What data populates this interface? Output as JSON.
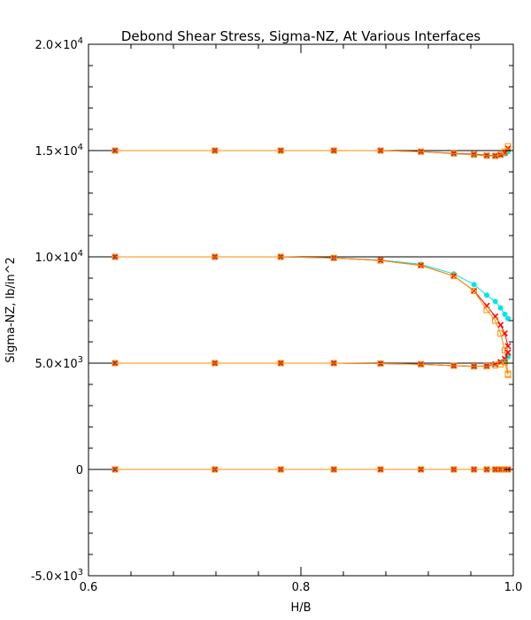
{
  "chart_data": {
    "type": "line",
    "title": "Debond Shear Stress, Sigma-NZ, At Various Interfaces",
    "xlabel": "H/B",
    "ylabel": "Sigma-NZ,   lb/in^2",
    "xlim": [
      0.6,
      1.0
    ],
    "ylim": [
      -5000,
      20000
    ],
    "x_ticks": [
      {
        "value": 0.6,
        "label": "0.6"
      },
      {
        "value": 0.8,
        "label": "0.8"
      },
      {
        "value": 1.0,
        "label": "1.0"
      }
    ],
    "y_ticks": [
      {
        "value": -5000,
        "mantissa": "-5.0",
        "exp": "3"
      },
      {
        "value": 0,
        "mantissa": "0",
        "exp": ""
      },
      {
        "value": 5000,
        "mantissa": "5.0",
        "exp": "3"
      },
      {
        "value": 10000,
        "mantissa": "1.0",
        "exp": "4"
      },
      {
        "value": 15000,
        "mantissa": "1.5",
        "exp": "4"
      },
      {
        "value": 20000,
        "mantissa": "2.0",
        "exp": "4"
      }
    ],
    "x_minor_step": 0.04,
    "y_minor_step": 1000,
    "grid": false,
    "series": [
      {
        "color": "#000000",
        "marker": "none",
        "x": [
          0.6,
          0.92,
          1.0
        ],
        "y": [
          15000,
          15000,
          15000
        ]
      },
      {
        "color": "#000000",
        "marker": "none",
        "x": [
          0.6,
          0.9,
          1.0
        ],
        "y": [
          10000,
          10000,
          10000
        ]
      },
      {
        "color": "#000000",
        "marker": "none",
        "x": [
          0.6,
          0.9,
          0.98,
          1.0
        ],
        "y": [
          5000,
          5000,
          5000,
          5000
        ]
      },
      {
        "color": "#000000",
        "marker": "none",
        "x": [
          0.6,
          1.0
        ],
        "y": [
          0,
          0
        ]
      },
      {
        "color": "#00e5e5",
        "marker": "circle",
        "x": [
          0.625,
          0.719,
          0.781,
          0.831,
          0.875,
          0.913,
          0.944,
          0.963,
          0.975,
          0.983,
          0.988,
          0.992,
          0.995
        ],
        "y": [
          15000,
          15000,
          15000,
          15000,
          15000,
          14950,
          14850,
          14800,
          14750,
          14750,
          14780,
          14850,
          14950
        ]
      },
      {
        "color": "#ff0000",
        "marker": "x",
        "x": [
          0.625,
          0.719,
          0.781,
          0.831,
          0.875,
          0.913,
          0.944,
          0.963,
          0.975,
          0.983,
          0.988,
          0.992,
          0.995
        ],
        "y": [
          15000,
          15000,
          15000,
          15000,
          15000,
          14950,
          14870,
          14830,
          14780,
          14760,
          14800,
          14900,
          15100
        ]
      },
      {
        "color": "#ff8c00",
        "marker": "square",
        "x": [
          0.625,
          0.719,
          0.781,
          0.831,
          0.875,
          0.913,
          0.944,
          0.963,
          0.975,
          0.983,
          0.988,
          0.992,
          0.995
        ],
        "y": [
          15000,
          15000,
          15000,
          15000,
          15000,
          14950,
          14860,
          14800,
          14760,
          14750,
          14800,
          14950,
          15200
        ]
      },
      {
        "color": "#00e5e5",
        "marker": "circle",
        "x": [
          0.625,
          0.719,
          0.781,
          0.831,
          0.875,
          0.913,
          0.944,
          0.963,
          0.975,
          0.983,
          0.988,
          0.992,
          0.995
        ],
        "y": [
          10000,
          10000,
          10000,
          9950,
          9850,
          9650,
          9200,
          8700,
          8200,
          7900,
          7600,
          7300,
          7100
        ]
      },
      {
        "color": "#ff0000",
        "marker": "x",
        "x": [
          0.625,
          0.719,
          0.781,
          0.831,
          0.875,
          0.913,
          0.944,
          0.963,
          0.975,
          0.983,
          0.988,
          0.992,
          0.995
        ],
        "y": [
          10000,
          10000,
          10000,
          9950,
          9830,
          9600,
          9100,
          8400,
          7700,
          7200,
          6800,
          6400,
          5800
        ]
      },
      {
        "color": "#ff8c00",
        "marker": "square",
        "x": [
          0.625,
          0.719,
          0.781,
          0.831,
          0.875,
          0.913,
          0.944,
          0.963,
          0.975,
          0.983,
          0.988,
          0.992,
          0.995
        ],
        "y": [
          10000,
          10000,
          10000,
          9950,
          9830,
          9600,
          9100,
          8400,
          7500,
          7000,
          6400,
          5600,
          4500
        ]
      },
      {
        "color": "#00e5e5",
        "marker": "circle",
        "x": [
          0.625,
          0.719,
          0.781,
          0.831,
          0.875,
          0.913,
          0.944,
          0.963,
          0.975,
          0.983,
          0.988,
          0.992,
          0.995
        ],
        "y": [
          5000,
          5000,
          5000,
          5000,
          4980,
          4950,
          4880,
          4850,
          4870,
          4950,
          5050,
          5150,
          5300
        ]
      },
      {
        "color": "#ff0000",
        "marker": "x",
        "x": [
          0.625,
          0.719,
          0.781,
          0.831,
          0.875,
          0.913,
          0.944,
          0.963,
          0.975,
          0.983,
          0.988,
          0.992,
          0.995
        ],
        "y": [
          5000,
          5000,
          5000,
          5000,
          4980,
          4950,
          4880,
          4850,
          4870,
          4950,
          5050,
          5200,
          5500
        ]
      },
      {
        "color": "#ff8c00",
        "marker": "square",
        "x": [
          0.625,
          0.719,
          0.781,
          0.831,
          0.875,
          0.913,
          0.944,
          0.963,
          0.975,
          0.983,
          0.988,
          0.992,
          0.995
        ],
        "y": [
          5000,
          5000,
          5000,
          5000,
          4980,
          4950,
          4880,
          4850,
          4860,
          4900,
          4950,
          5050,
          4450
        ]
      },
      {
        "color": "#00e5e5",
        "marker": "circle",
        "x": [
          0.625,
          0.719,
          0.781,
          0.831,
          0.875,
          0.913,
          0.944,
          0.963,
          0.975,
          0.983,
          0.988,
          0.992,
          0.995
        ],
        "y": [
          0,
          0,
          0,
          0,
          0,
          0,
          0,
          0,
          0,
          0,
          0,
          0,
          0
        ]
      },
      {
        "color": "#ff0000",
        "marker": "x",
        "x": [
          0.625,
          0.719,
          0.781,
          0.831,
          0.875,
          0.913,
          0.944,
          0.963,
          0.975,
          0.983,
          0.988,
          0.992,
          0.995
        ],
        "y": [
          0,
          0,
          0,
          0,
          0,
          0,
          0,
          0,
          0,
          0,
          0,
          0,
          0
        ]
      },
      {
        "color": "#ff8c00",
        "marker": "square",
        "x": [
          0.625,
          0.719,
          0.781,
          0.831,
          0.875,
          0.913,
          0.944,
          0.963,
          0.975,
          0.983,
          0.988,
          0.992,
          0.995
        ],
        "y": [
          0,
          0,
          0,
          0,
          0,
          0,
          0,
          0,
          0,
          0,
          0,
          0,
          0
        ]
      }
    ]
  }
}
